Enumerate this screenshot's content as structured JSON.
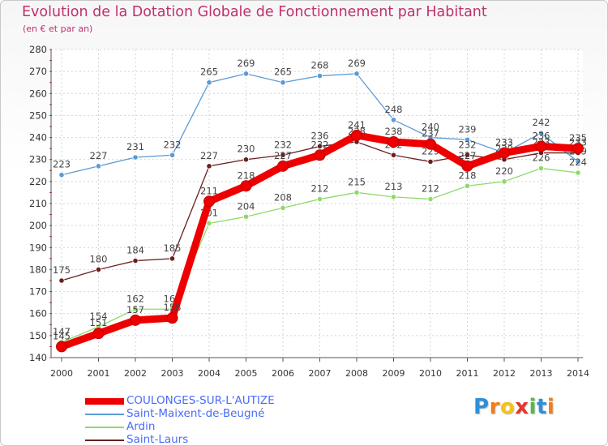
{
  "chart_data": {
    "type": "line",
    "title": "Evolution de la Dotation Globale de Fonctionnement par Habitant",
    "subtitle": "(en € et par an)",
    "x": [
      "2000",
      "2001",
      "2002",
      "2003",
      "2004",
      "2005",
      "2006",
      "2007",
      "2008",
      "2009",
      "2010",
      "2011",
      "2012",
      "2013",
      "2014"
    ],
    "ylim": [
      140,
      280
    ],
    "yticks": [
      "140",
      "150",
      "160",
      "170",
      "180",
      "190",
      "200",
      "210",
      "220",
      "230",
      "240",
      "250",
      "260",
      "270",
      "280"
    ],
    "grid": true,
    "series": [
      {
        "name": "Saint-Maixent-de-Beugné",
        "color": "#5b9bd5",
        "values": [
          223,
          227,
          231,
          232,
          265,
          269,
          265,
          268,
          269,
          248,
          240,
          239,
          233,
          242,
          229
        ],
        "highlight": false
      },
      {
        "name": "Ardin",
        "color": "#8fd96a",
        "values": [
          147,
          154,
          162,
          162,
          201,
          204,
          208,
          212,
          215,
          213,
          212,
          218,
          220,
          226,
          224
        ],
        "highlight": false
      },
      {
        "name": "Saint-Laurs",
        "color": "#6b1f1f",
        "values": [
          175,
          180,
          184,
          185,
          227,
          230,
          232,
          236,
          238,
          232,
          229,
          232,
          230,
          233,
          233
        ],
        "highlight": false
      },
      {
        "name": "COULONGES-SUR-L'AUTIZE",
        "color": "#ee0000",
        "values": [
          145,
          151,
          157,
          158,
          211,
          218,
          227,
          232,
          241,
          238,
          237,
          227,
          233,
          236,
          235
        ],
        "highlight": true
      }
    ],
    "legend_order": [
      "COULONGES-SUR-L'AUTIZE",
      "Saint-Maixent-de-Beugné",
      "Ardin",
      "Saint-Laurs"
    ]
  },
  "brand": {
    "letters": [
      "P",
      "r",
      "o",
      "x",
      "i",
      "t",
      "i"
    ],
    "colors": [
      "#2f8fd8",
      "#f07d1a",
      "#f5c21b",
      "#e6362b",
      "#55b848",
      "#2f8fd8",
      "#f07d1a"
    ]
  }
}
